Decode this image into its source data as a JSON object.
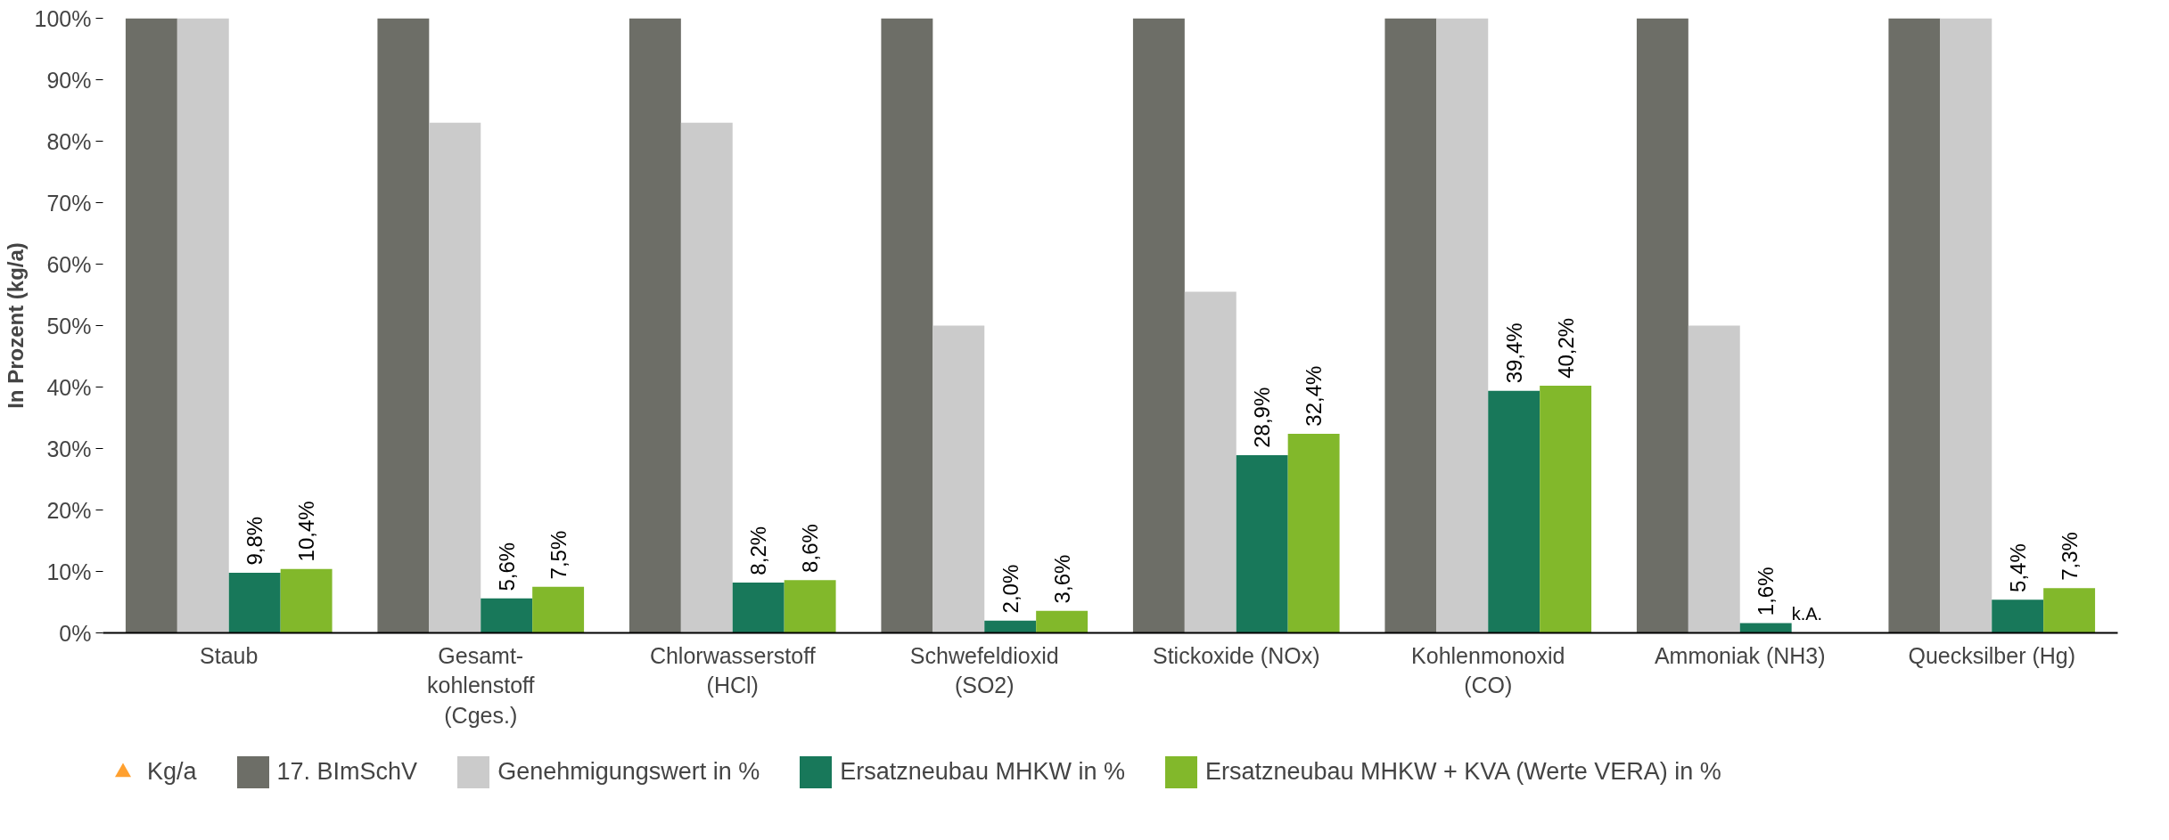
{
  "chart_data": {
    "type": "bar",
    "ylabel": "In Prozent (kg/a)",
    "categories": [
      "Staub",
      "Gesamt-\nkohlenstoff\n(Cges.)",
      "Chlorwasserstoff\n(HCl)",
      "Schwefeldioxid\n(SO2)",
      "Stickoxide (NOx)",
      "Kohlenmonoxid\n(CO)",
      "Ammoniak (NH3)",
      "Quecksilber (Hg)"
    ],
    "series": [
      {
        "name": "Kg/a",
        "type": "scatter",
        "marker": "triangle",
        "color": "#ffa02f",
        "values": [
          null,
          null,
          null,
          null,
          null,
          null,
          null,
          null
        ]
      },
      {
        "name": "17. BImSchV",
        "color": "#6d6e67",
        "values": [
          100,
          100,
          100,
          100,
          100,
          100,
          100,
          100
        ]
      },
      {
        "name": "Genehmigungswert in %",
        "color": "#cbcbcb",
        "values": [
          100,
          83,
          83,
          50,
          55.5,
          100,
          50,
          100
        ]
      },
      {
        "name": "Ersatzneubau MHKW in %",
        "color": "#18785a",
        "values": [
          9.8,
          5.6,
          8.2,
          2.0,
          28.9,
          39.4,
          1.6,
          5.4
        ],
        "value_labels": [
          "9,8%",
          "5,6%",
          "8,2%",
          "2,0%",
          "28,9%",
          "39,4%",
          "1,6%",
          "5,4%"
        ]
      },
      {
        "name": "Ersatzneubau MHKW + KVA (Werte VERA) in %",
        "color": "#82b82b",
        "values": [
          10.4,
          7.5,
          8.6,
          3.6,
          32.4,
          40.2,
          null,
          7.3
        ],
        "value_labels": [
          "10,4%",
          "7,5%",
          "8,6%",
          "3,6%",
          "32,4%",
          "40,2%",
          "k.A.",
          "7,3%"
        ]
      }
    ],
    "ylim": [
      0,
      100
    ],
    "yticks": [
      {
        "value": 0,
        "label": "0%"
      },
      {
        "value": 10,
        "label": "10%"
      },
      {
        "value": 20,
        "label": "20%"
      },
      {
        "value": 30,
        "label": "30%"
      },
      {
        "value": 40,
        "label": "40%"
      },
      {
        "value": 50,
        "label": "50%"
      },
      {
        "value": 60,
        "label": "60%"
      },
      {
        "value": 70,
        "label": "70%"
      },
      {
        "value": 80,
        "label": "80%"
      },
      {
        "value": 90,
        "label": "90%"
      },
      {
        "value": 100,
        "label": "100%"
      }
    ],
    "grid": false,
    "legend": "bottom"
  }
}
